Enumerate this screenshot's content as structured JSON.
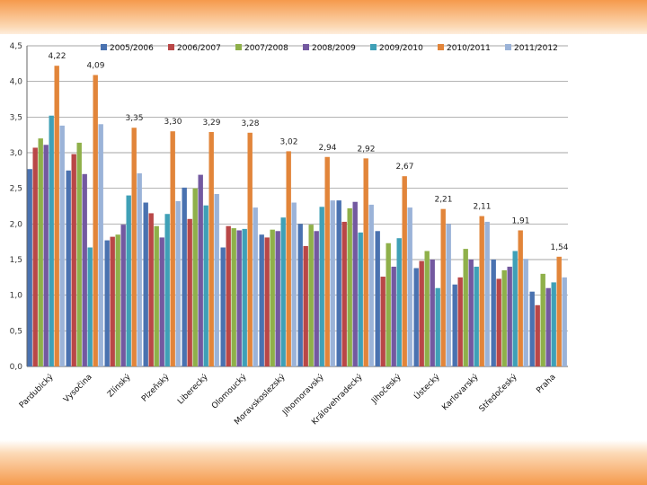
{
  "colors": {
    "series": [
      "#4a72b0",
      "#b94747",
      "#8fb04a",
      "#7359a0",
      "#3fa0b7",
      "#e2853a",
      "#9bb3d8"
    ],
    "grid": "#888888"
  },
  "chart_data": {
    "type": "bar",
    "title": "",
    "xlabel": "",
    "ylabel": "",
    "ylim": [
      0,
      4.5
    ],
    "ytick_step": 0.5,
    "grid": true,
    "legend_position": "top",
    "yticks": [
      "0,0",
      "0,5",
      "1,0",
      "1,5",
      "2,0",
      "2,5",
      "3,0",
      "3,5",
      "4,0",
      "4,5"
    ],
    "categories": [
      "Pardubický",
      "Vysočina",
      "Zlínský",
      "Plzeňský",
      "Liberecký",
      "Olomoucký",
      "Moravskoslezský",
      "Jihomoravský",
      "Královehradecký",
      "Jihočeský",
      "Ústecký",
      "Karlovarský",
      "Středočeský",
      "Praha"
    ],
    "series": [
      {
        "name": "2005/2006",
        "values": [
          2.77,
          2.75,
          1.77,
          2.3,
          2.51,
          1.67,
          1.85,
          2.0,
          2.33,
          1.9,
          1.38,
          1.15,
          1.5,
          1.05
        ]
      },
      {
        "name": "2006/2007",
        "values": [
          3.07,
          2.98,
          1.82,
          2.15,
          2.07,
          1.97,
          1.81,
          1.69,
          2.03,
          1.26,
          1.48,
          1.25,
          1.23,
          0.86
        ]
      },
      {
        "name": "2007/2008",
        "values": [
          3.2,
          3.14,
          1.85,
          1.97,
          2.5,
          1.94,
          1.92,
          1.99,
          2.22,
          1.73,
          1.62,
          1.65,
          1.35,
          1.3
        ]
      },
      {
        "name": "2008/2009",
        "values": [
          3.11,
          2.7,
          1.99,
          1.81,
          2.69,
          1.91,
          1.9,
          1.9,
          2.31,
          1.4,
          1.5,
          1.5,
          1.4,
          1.1
        ]
      },
      {
        "name": "2009/2010",
        "values": [
          3.52,
          1.67,
          2.4,
          2.14,
          2.26,
          1.93,
          2.09,
          2.24,
          1.88,
          1.8,
          1.1,
          1.4,
          1.62,
          1.18
        ]
      },
      {
        "name": "2010/2011",
        "values": [
          4.22,
          4.09,
          3.35,
          3.3,
          3.29,
          3.28,
          3.02,
          2.94,
          2.92,
          2.67,
          2.21,
          2.11,
          1.91,
          1.54
        ]
      },
      {
        "name": "2011/2012",
        "values": [
          3.38,
          3.4,
          2.71,
          2.32,
          2.42,
          2.23,
          2.3,
          2.33,
          2.27,
          2.23,
          2.0,
          2.03,
          1.51,
          1.25
        ]
      }
    ],
    "data_labels": [
      "4,22",
      "4,09",
      "3,35",
      "3,30",
      "3,29",
      "3,28",
      "3,02",
      "2,94",
      "2,92",
      "2,67",
      "2,21",
      "2,11",
      "1,91",
      "1,54"
    ],
    "data_label_series": "2010/2011"
  }
}
